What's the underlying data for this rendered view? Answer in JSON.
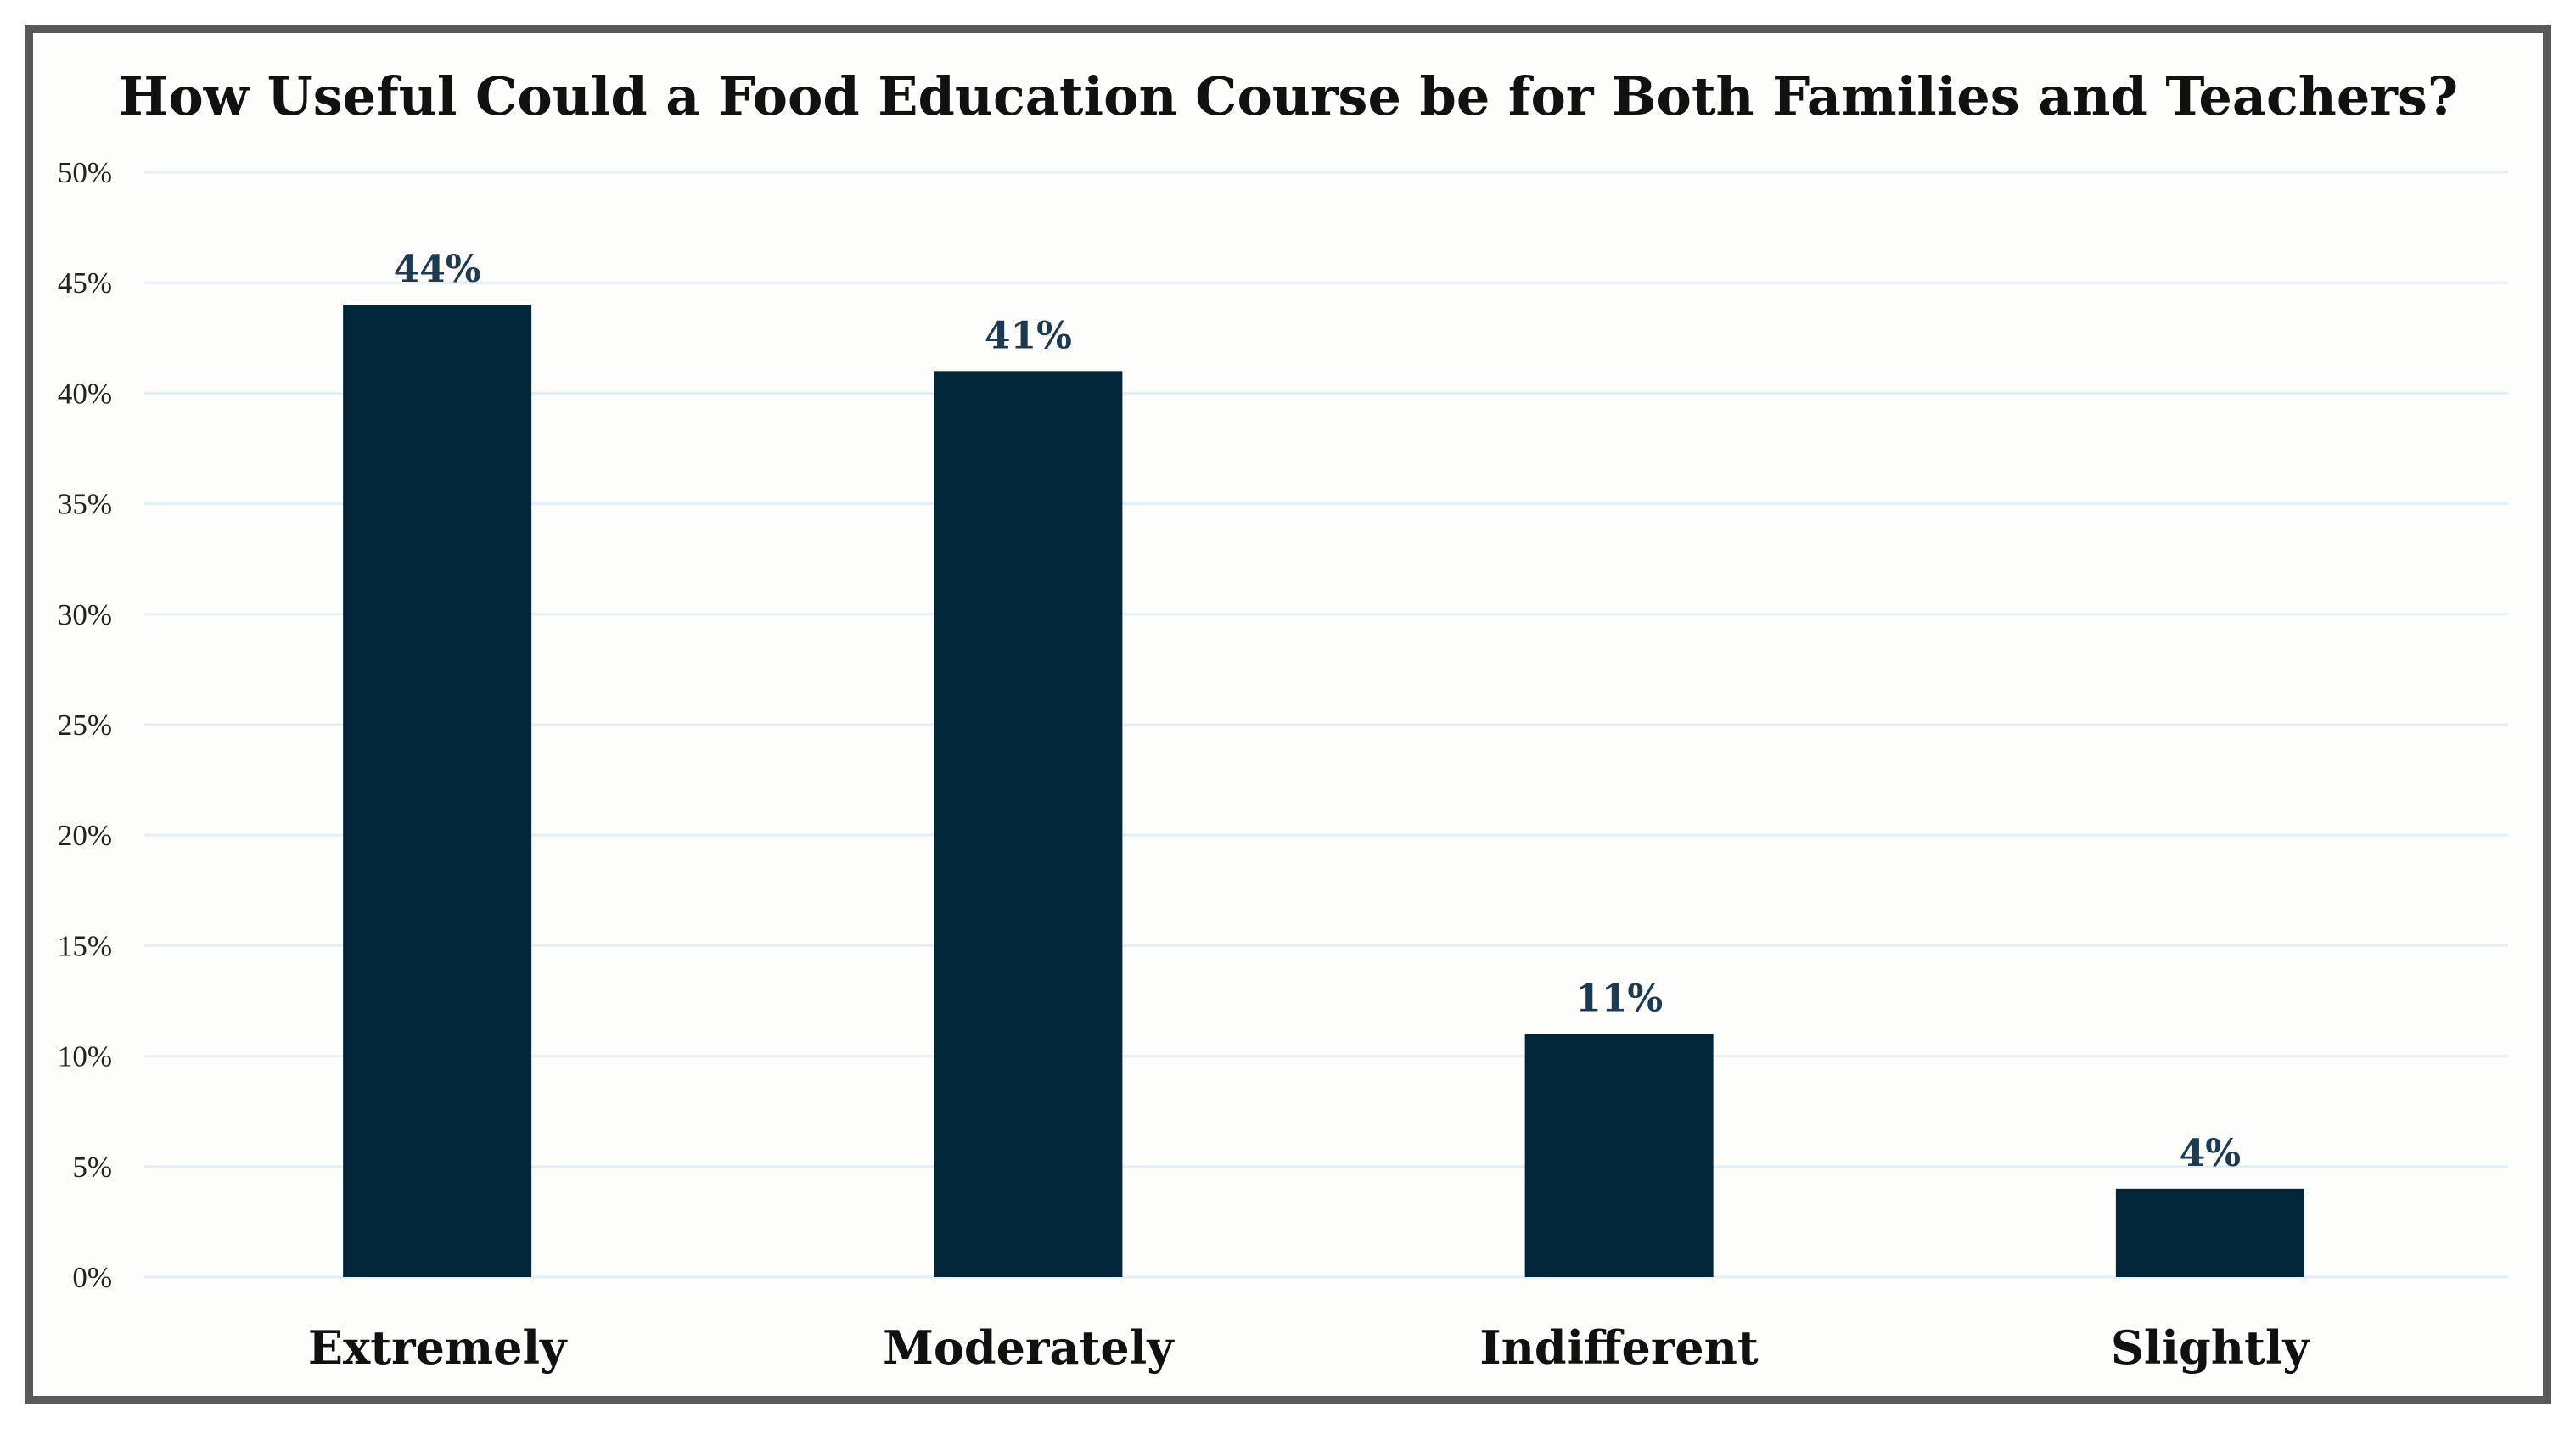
{
  "chart_data": {
    "type": "bar",
    "title": "How Useful Could a Food Education Course be for Both Families and Teachers?",
    "xlabel": "",
    "ylabel": "",
    "categories": [
      "Extremely",
      "Moderately",
      "Indifferent",
      "Slightly"
    ],
    "values": [
      44,
      41,
      11,
      4
    ],
    "data_labels": [
      "44%",
      "41%",
      "11%",
      "4%"
    ],
    "ylim": [
      0,
      50
    ],
    "y_ticks": [
      0,
      5,
      10,
      15,
      20,
      25,
      30,
      35,
      40,
      45,
      50
    ],
    "y_tick_labels": [
      "0%",
      "5%",
      "10%",
      "15%",
      "20%",
      "25%",
      "30%",
      "35%",
      "40%",
      "45%",
      "50%"
    ],
    "grid": true,
    "legend": "none",
    "bar_color": "#02263a",
    "label_color": "#1c3a52",
    "grid_color": "#e3eef6",
    "frame_color": "#595959"
  }
}
